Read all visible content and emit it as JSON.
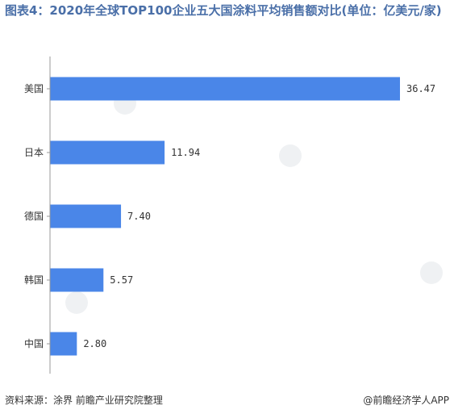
{
  "colors": {
    "title": "#4a6fa8",
    "bar": "#4a86e8",
    "axis": "#999999",
    "text": "#333333"
  },
  "footer": {
    "source": "资料来源：涂界 前瞻产业研究院整理",
    "brand": "@前瞻经济学人APP"
  },
  "chart_data": {
    "type": "bar",
    "orientation": "horizontal",
    "title": "图表4：2020年全球TOP100企业五大国涂料平均销售额对比(单位：亿美元/家)",
    "categories": [
      "美国",
      "日本",
      "德国",
      "韩国",
      "中国"
    ],
    "values": [
      36.47,
      11.94,
      7.4,
      5.57,
      2.8
    ],
    "value_labels": [
      "36.47",
      "11.94",
      "7.40",
      "5.57",
      "2.80"
    ],
    "xlim": [
      0,
      36.47
    ],
    "grid": false,
    "legend": "none"
  }
}
